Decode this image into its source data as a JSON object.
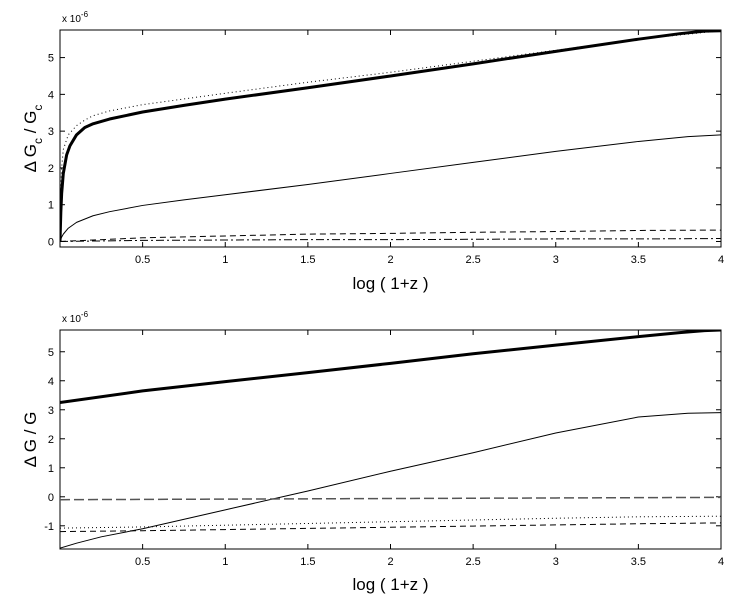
{
  "chart_data": [
    {
      "type": "line",
      "title": "",
      "xlabel": "log ( 1+z )",
      "ylabel": "Δ G_c / G_c",
      "ylabel_parts": {
        "delta": "Δ",
        "g1": "G",
        "sub1": "c",
        "slash": " / ",
        "g2": "G",
        "sub2": "c"
      },
      "y_multiplier": {
        "base": "x 10",
        "exponent": "-6"
      },
      "xlim": [
        0,
        4
      ],
      "ylim": [
        -0.15,
        5.75
      ],
      "xticks": [
        0.5,
        1,
        1.5,
        2,
        2.5,
        3,
        3.5,
        4
      ],
      "xtick_labels": [
        "0.5",
        "1",
        "1.5",
        "2",
        "2.5",
        "3",
        "3.5",
        "4"
      ],
      "yticks": [
        0,
        1,
        2,
        3,
        4,
        5
      ],
      "ytick_labels": [
        "0",
        "1",
        "2",
        "3",
        "4",
        "5"
      ],
      "grid": false,
      "legend": "none",
      "series": [
        {
          "style": "thick-solid",
          "x": [
            0,
            0.005,
            0.01,
            0.02,
            0.04,
            0.06,
            0.1,
            0.15,
            0.2,
            0.3,
            0.5,
            0.75,
            1,
            1.5,
            2,
            2.5,
            3,
            3.5,
            3.75,
            3.9,
            4
          ],
          "y": [
            0,
            0.8,
            1.3,
            1.85,
            2.35,
            2.6,
            2.9,
            3.1,
            3.2,
            3.33,
            3.52,
            3.7,
            3.87,
            4.18,
            4.5,
            4.83,
            5.17,
            5.5,
            5.65,
            5.72,
            5.73
          ]
        },
        {
          "style": "dotted",
          "x": [
            0,
            0.005,
            0.01,
            0.02,
            0.05,
            0.1,
            0.15,
            0.2,
            0.3,
            0.5,
            1,
            1.5,
            2,
            2.5,
            3,
            3.5,
            4
          ],
          "y": [
            0,
            1.5,
            2.0,
            2.5,
            2.9,
            3.15,
            3.3,
            3.42,
            3.55,
            3.72,
            4.03,
            4.33,
            4.6,
            4.9,
            5.2,
            5.5,
            5.73
          ]
        },
        {
          "style": "thin-solid",
          "x": [
            0,
            0.01,
            0.02,
            0.05,
            0.1,
            0.2,
            0.3,
            0.5,
            0.75,
            1,
            1.5,
            2,
            2.5,
            3,
            3.5,
            3.8,
            4
          ],
          "y": [
            0,
            0.12,
            0.2,
            0.36,
            0.52,
            0.7,
            0.81,
            0.98,
            1.13,
            1.27,
            1.55,
            1.85,
            2.15,
            2.45,
            2.72,
            2.85,
            2.9
          ]
        },
        {
          "style": "dashed",
          "x": [
            0,
            0.5,
            1,
            1.5,
            2,
            2.5,
            3,
            3.5,
            4
          ],
          "y": [
            0,
            0.1,
            0.15,
            0.2,
            0.22,
            0.25,
            0.27,
            0.3,
            0.31
          ]
        },
        {
          "style": "dash-dot",
          "x": [
            0,
            0.5,
            1,
            1.5,
            2,
            2.5,
            3,
            3.5,
            4
          ],
          "y": [
            0,
            0.03,
            0.04,
            0.05,
            0.05,
            0.06,
            0.07,
            0.07,
            0.08
          ]
        }
      ]
    },
    {
      "type": "line",
      "title": "",
      "xlabel": "log ( 1+z )",
      "ylabel": "Δ G / G",
      "ylabel_parts": {
        "delta": "Δ",
        "g1": "G",
        "sub1": "",
        "slash": " / ",
        "g2": "G",
        "sub2": ""
      },
      "y_multiplier": {
        "base": "x 10",
        "exponent": "-6"
      },
      "xlim": [
        0,
        4
      ],
      "ylim": [
        -1.8,
        5.75
      ],
      "xticks": [
        0.5,
        1,
        1.5,
        2,
        2.5,
        3,
        3.5,
        4
      ],
      "xtick_labels": [
        "0.5",
        "1",
        "1.5",
        "2",
        "2.5",
        "3",
        "3.5",
        "4"
      ],
      "yticks": [
        -1,
        0,
        1,
        2,
        3,
        4,
        5
      ],
      "ytick_labels": [
        "-1",
        "0",
        "1",
        "2",
        "3",
        "4",
        "5"
      ],
      "grid": false,
      "legend": "none",
      "series": [
        {
          "style": "thick-solid",
          "x": [
            0,
            0.5,
            1,
            1.5,
            2,
            2.5,
            3,
            3.5,
            3.75,
            3.9,
            4
          ],
          "y": [
            3.25,
            3.65,
            3.97,
            4.28,
            4.6,
            4.93,
            5.23,
            5.52,
            5.66,
            5.73,
            5.75
          ]
        },
        {
          "style": "thin-solid",
          "x": [
            0,
            0.1,
            0.25,
            0.5,
            1,
            1.5,
            2,
            2.5,
            3,
            3.5,
            3.8,
            4
          ],
          "y": [
            -1.77,
            -1.6,
            -1.38,
            -1.1,
            -0.45,
            0.2,
            0.88,
            1.52,
            2.2,
            2.75,
            2.88,
            2.9
          ]
        },
        {
          "style": "dotted",
          "x": [
            0,
            0.5,
            1,
            1.5,
            2,
            2.5,
            3,
            3.5,
            4
          ],
          "y": [
            -1.08,
            -1.04,
            -0.98,
            -0.92,
            -0.86,
            -0.8,
            -0.74,
            -0.69,
            -0.67
          ]
        },
        {
          "style": "dashed",
          "x": [
            0,
            0.5,
            1,
            1.5,
            2,
            2.5,
            3,
            3.5,
            4
          ],
          "y": [
            -1.2,
            -1.17,
            -1.13,
            -1.09,
            -1.05,
            -1.01,
            -0.97,
            -0.93,
            -0.9
          ]
        },
        {
          "style": "gray-dashed",
          "x": [
            0,
            0.5,
            1,
            1.5,
            2,
            2.5,
            3,
            3.5,
            4
          ],
          "y": [
            -0.1,
            -0.09,
            -0.08,
            -0.07,
            -0.06,
            -0.05,
            -0.04,
            -0.03,
            -0.02
          ]
        }
      ]
    }
  ]
}
